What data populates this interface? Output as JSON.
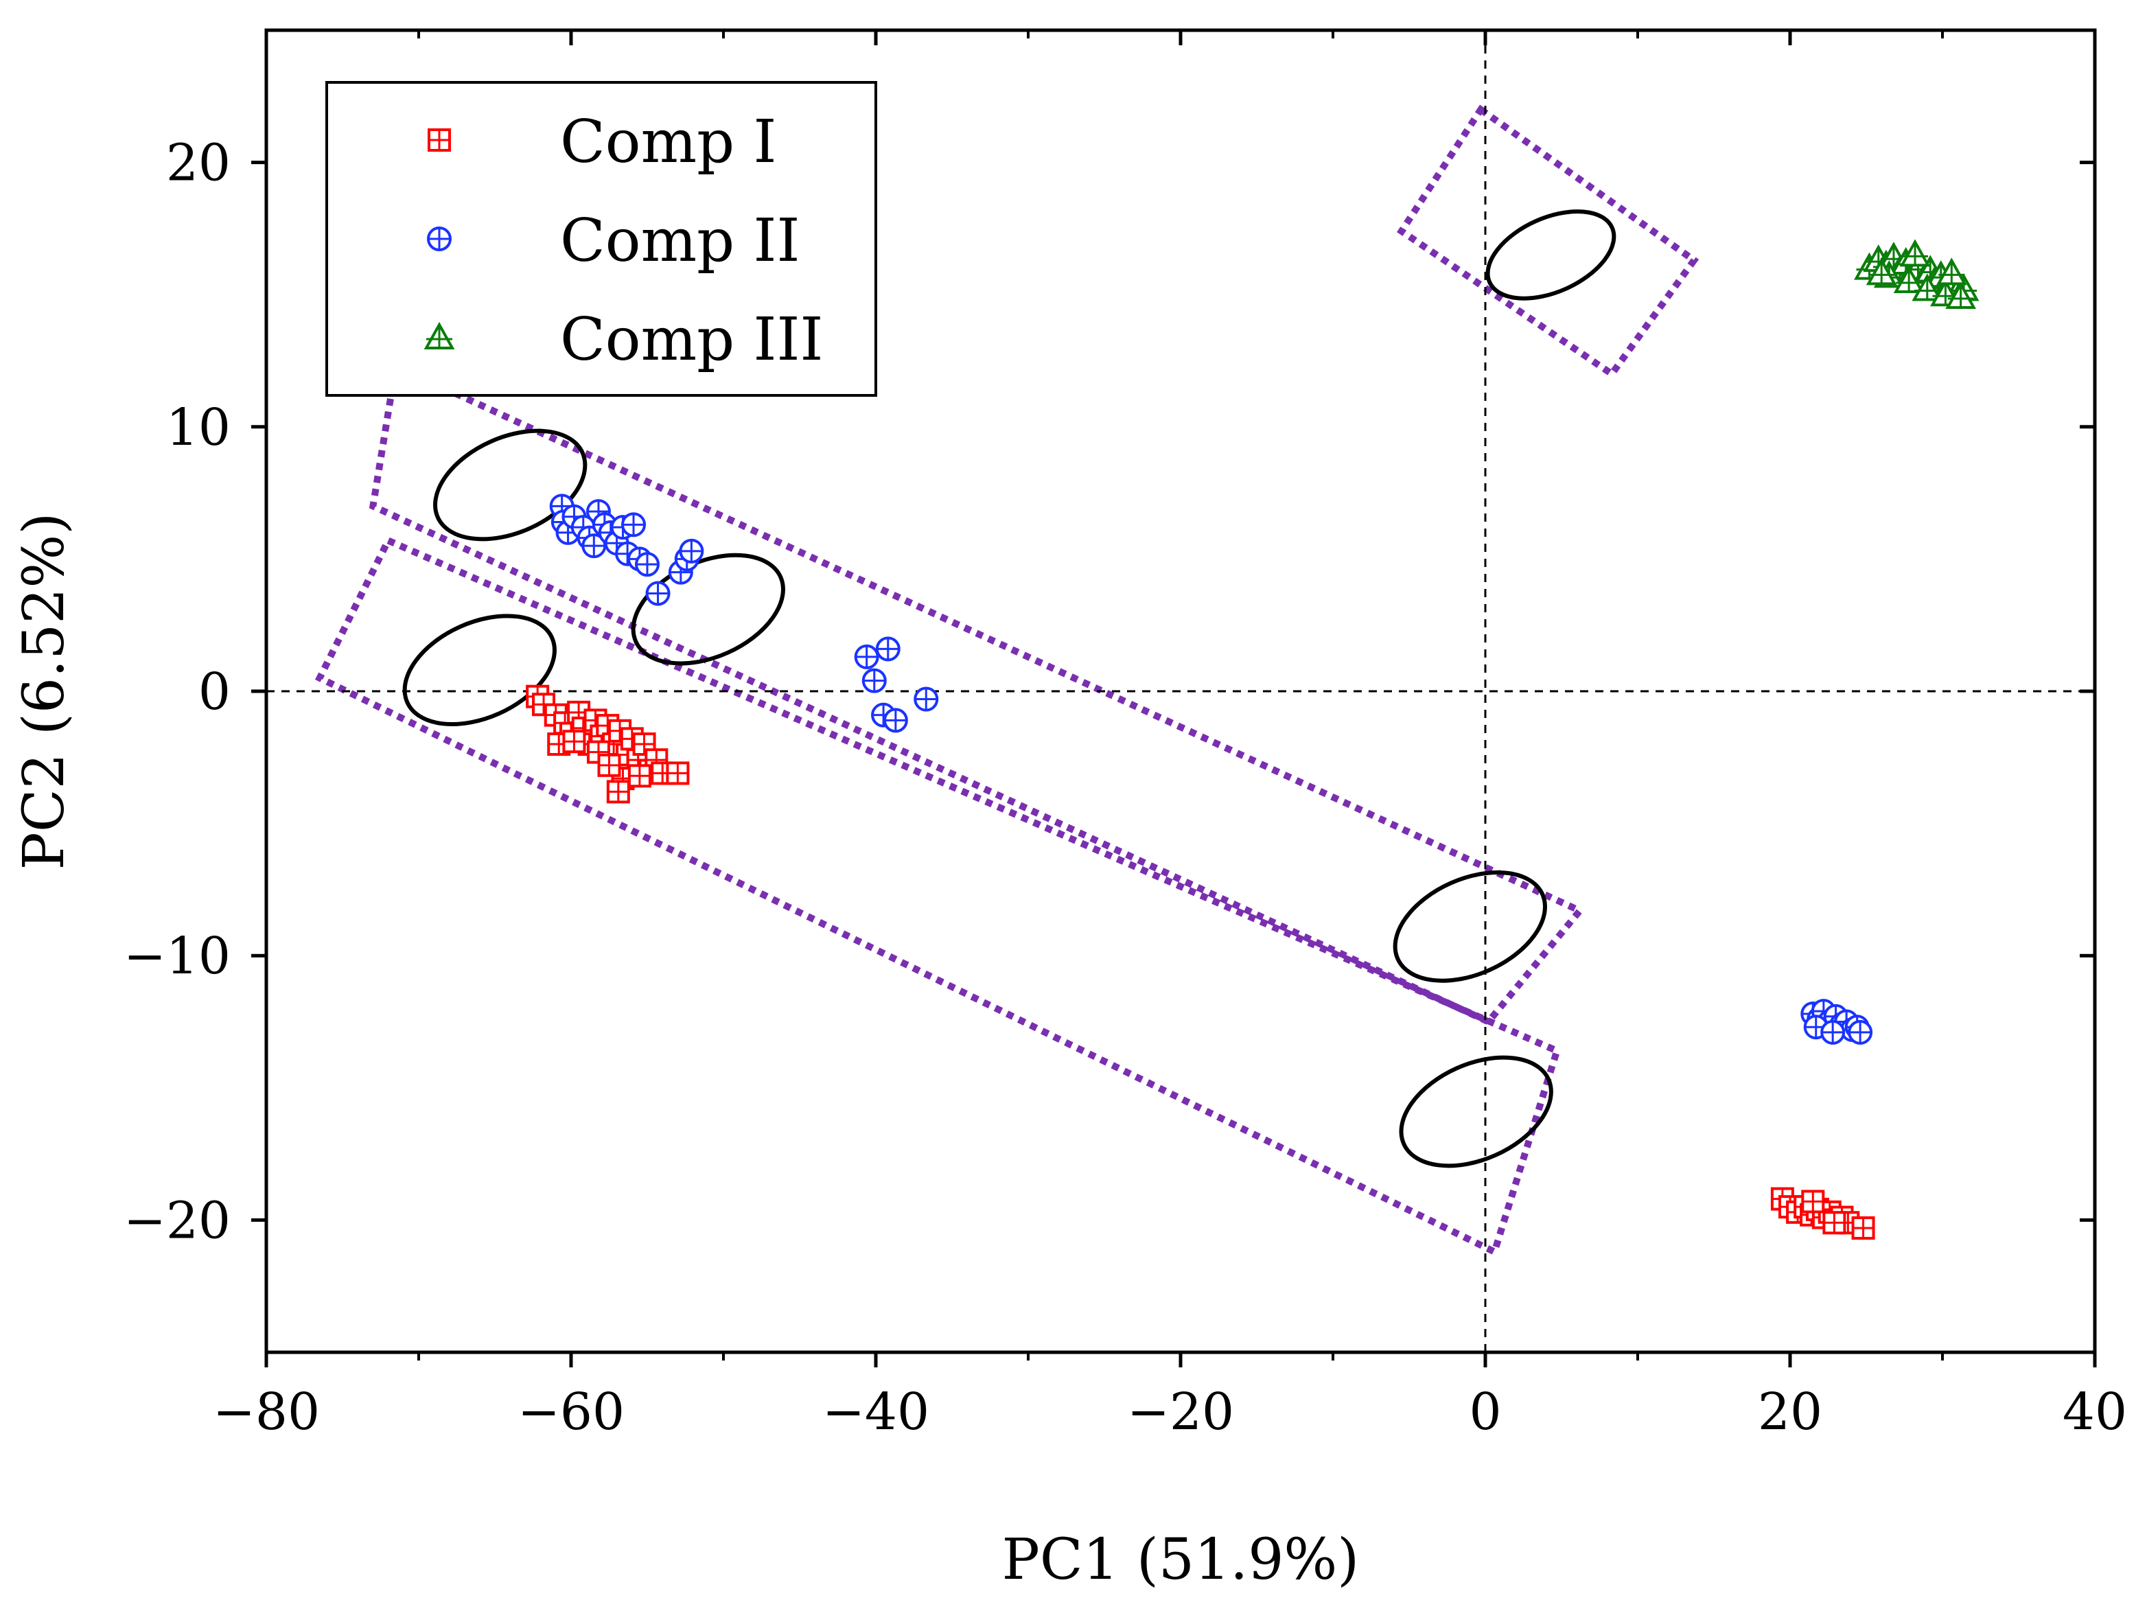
{
  "chart_data": {
    "type": "scatter",
    "xlabel": "PC1 (51.9%)",
    "ylabel": "PC2 (6.52%)",
    "xlim": [
      -80,
      40
    ],
    "ylim": [
      -25,
      25
    ],
    "xticks": [
      -80,
      -60,
      -40,
      -20,
      0,
      20,
      40
    ],
    "yticks": [
      -20,
      -10,
      0,
      10,
      20
    ],
    "xtick_labels": [
      "−80",
      "−60",
      "−40",
      "−20",
      "0",
      "20",
      "40"
    ],
    "ytick_labels": [
      "−20",
      "−10",
      "0",
      "10",
      "20"
    ],
    "reference_lines": {
      "x": 0,
      "y": 0,
      "style": "dashed"
    },
    "legend_position": "top-left",
    "series": [
      {
        "name": "Comp I",
        "marker": "square-plus",
        "color": "#ff0000",
        "points": [
          [
            -62.2,
            -0.2
          ],
          [
            -61.8,
            -0.5
          ],
          [
            -61.0,
            -0.9
          ],
          [
            -60.4,
            -1.2
          ],
          [
            -60.0,
            -1.6
          ],
          [
            -59.5,
            -0.8
          ],
          [
            -59.2,
            -1.4
          ],
          [
            -58.8,
            -2.0
          ],
          [
            -58.4,
            -1.1
          ],
          [
            -58.0,
            -1.7
          ],
          [
            -57.6,
            -1.3
          ],
          [
            -57.2,
            -2.0
          ],
          [
            -56.8,
            -1.5
          ],
          [
            -56.3,
            -2.4
          ],
          [
            -56.0,
            -1.8
          ],
          [
            -55.6,
            -2.6
          ],
          [
            -55.2,
            -2.0
          ],
          [
            -54.8,
            -3.0
          ],
          [
            -54.4,
            -2.6
          ],
          [
            -56.6,
            -3.3
          ],
          [
            -56.9,
            -3.8
          ],
          [
            -55.5,
            -3.2
          ],
          [
            -54.0,
            -3.1
          ],
          [
            -53.0,
            -3.1
          ],
          [
            -60.8,
            -2.0
          ],
          [
            -59.8,
            -1.9
          ],
          [
            -58.2,
            -2.3
          ],
          [
            -57.5,
            -2.8
          ],
          [
            19.5,
            -19.2
          ],
          [
            20.0,
            -19.5
          ],
          [
            20.5,
            -19.7
          ],
          [
            21.0,
            -19.5
          ],
          [
            21.4,
            -19.8
          ],
          [
            21.8,
            -19.6
          ],
          [
            22.2,
            -19.9
          ],
          [
            22.6,
            -19.7
          ],
          [
            23.0,
            -20.0
          ],
          [
            23.4,
            -19.9
          ],
          [
            23.8,
            -20.1
          ],
          [
            24.8,
            -20.3
          ],
          [
            22.9,
            -20.1
          ],
          [
            21.5,
            -19.3
          ]
        ]
      },
      {
        "name": "Comp II",
        "marker": "circle-plus",
        "color": "#1a33ff",
        "points": [
          [
            -60.6,
            7.0
          ],
          [
            -60.5,
            6.4
          ],
          [
            -60.2,
            6.0
          ],
          [
            -59.8,
            6.6
          ],
          [
            -59.2,
            6.2
          ],
          [
            -58.8,
            5.8
          ],
          [
            -58.5,
            5.5
          ],
          [
            -58.2,
            6.8
          ],
          [
            -57.8,
            6.3
          ],
          [
            -57.4,
            6.0
          ],
          [
            -57.0,
            5.6
          ],
          [
            -56.6,
            6.2
          ],
          [
            -56.3,
            5.2
          ],
          [
            -55.9,
            6.3
          ],
          [
            -55.5,
            5.0
          ],
          [
            -55.0,
            4.8
          ],
          [
            -54.3,
            3.7
          ],
          [
            -52.8,
            4.5
          ],
          [
            -52.4,
            5.0
          ],
          [
            -52.1,
            5.3
          ],
          [
            -40.6,
            1.3
          ],
          [
            -40.1,
            0.4
          ],
          [
            -39.2,
            1.6
          ],
          [
            -39.5,
            -0.9
          ],
          [
            -38.7,
            -1.1
          ],
          [
            -36.7,
            -0.3
          ],
          [
            21.5,
            -12.2
          ],
          [
            21.9,
            -12.4
          ],
          [
            22.2,
            -12.1
          ],
          [
            22.6,
            -12.5
          ],
          [
            23.0,
            -12.3
          ],
          [
            23.4,
            -12.6
          ],
          [
            23.7,
            -12.5
          ],
          [
            24.1,
            -12.8
          ],
          [
            24.4,
            -12.7
          ],
          [
            21.7,
            -12.7
          ],
          [
            22.8,
            -12.9
          ],
          [
            24.6,
            -12.9
          ]
        ]
      },
      {
        "name": "Comp III",
        "marker": "triangle-plus",
        "color": "#0a7d0a",
        "points": [
          [
            25.2,
            16.0
          ],
          [
            25.8,
            16.3
          ],
          [
            26.3,
            16.1
          ],
          [
            26.8,
            16.4
          ],
          [
            27.2,
            15.9
          ],
          [
            27.6,
            16.2
          ],
          [
            28.0,
            15.8
          ],
          [
            28.4,
            16.0
          ],
          [
            28.8,
            15.6
          ],
          [
            29.2,
            15.9
          ],
          [
            29.5,
            15.5
          ],
          [
            29.9,
            15.7
          ],
          [
            30.3,
            15.3
          ],
          [
            30.7,
            15.5
          ],
          [
            31.0,
            15.1
          ],
          [
            31.4,
            15.2
          ],
          [
            26.5,
            15.7
          ],
          [
            27.8,
            15.5
          ],
          [
            29.0,
            15.2
          ],
          [
            30.2,
            15.0
          ],
          [
            31.2,
            14.9
          ],
          [
            28.2,
            16.5
          ],
          [
            26.0,
            15.8
          ],
          [
            30.6,
            15.8
          ]
        ]
      }
    ],
    "annotations": {
      "ellipses": [
        {
          "cx": -64.0,
          "cy": 7.8,
          "rx": 5.2,
          "ry": 1.8,
          "rotation_deg": -24
        },
        {
          "cx": -51.0,
          "cy": 3.1,
          "rx": 5.2,
          "ry": 1.8,
          "rotation_deg": -24
        },
        {
          "cx": -66.0,
          "cy": 0.8,
          "rx": 5.2,
          "ry": 1.8,
          "rotation_deg": -24
        },
        {
          "cx": -1.0,
          "cy": -8.9,
          "rx": 5.2,
          "ry": 1.8,
          "rotation_deg": -24
        },
        {
          "cx": -0.6,
          "cy": -15.9,
          "rx": 5.2,
          "ry": 1.8,
          "rotation_deg": -24
        },
        {
          "cx": 4.3,
          "cy": 16.5,
          "rx": 4.4,
          "ry": 1.4,
          "rotation_deg": -24
        }
      ],
      "dotted_boxes": [
        [
          [
            -71.5,
            12.3
          ],
          [
            6.2,
            -8.3
          ],
          [
            0.2,
            -12.5
          ],
          [
            -73.0,
            7.0
          ]
        ],
        [
          [
            -72.0,
            5.7
          ],
          [
            4.7,
            -13.6
          ],
          [
            0.6,
            -21.2
          ],
          [
            -76.5,
            0.5
          ]
        ],
        [
          [
            -0.3,
            22.0
          ],
          [
            13.7,
            16.3
          ],
          [
            8.3,
            12.0
          ],
          [
            -5.5,
            17.4
          ]
        ]
      ],
      "color": "#7a2fb0"
    }
  }
}
